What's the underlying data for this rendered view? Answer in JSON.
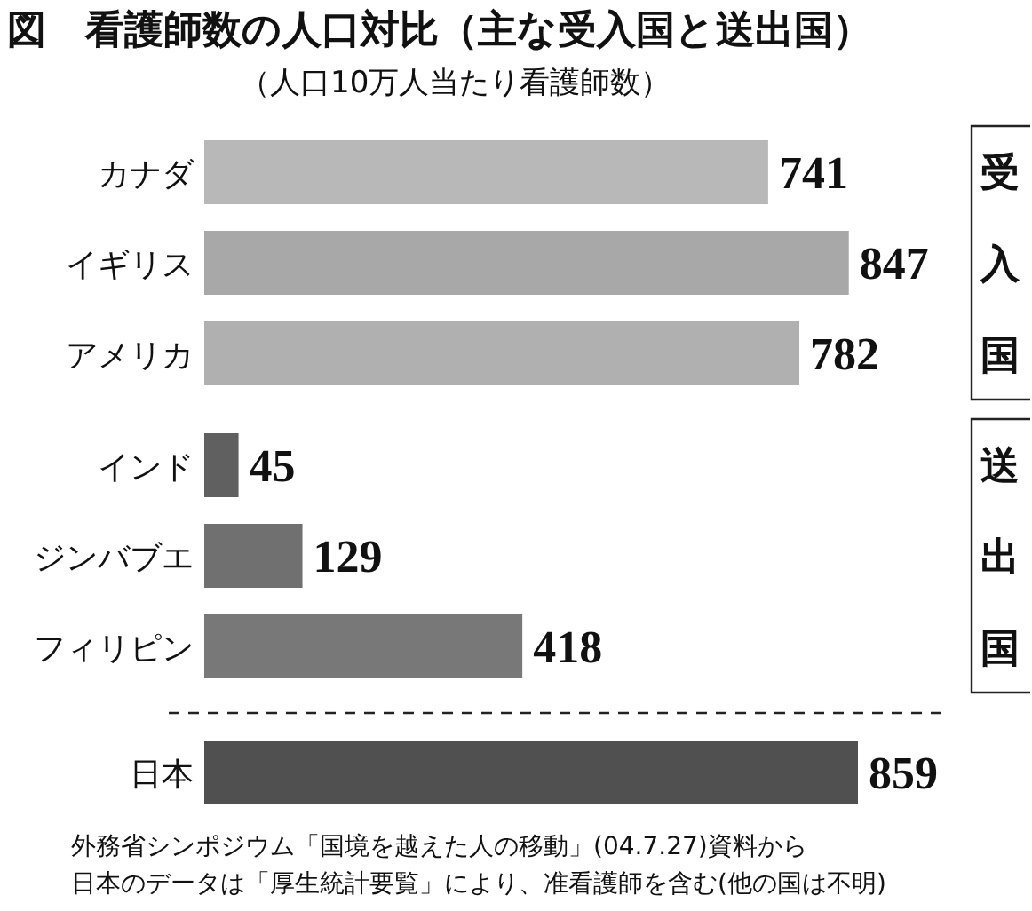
{
  "chart_data": {
    "type": "bar",
    "orientation": "horizontal",
    "title": "図　看護師数の人口対比（主な受入国と送出国）",
    "subtitle": "（人口10万人当たり看護師数）",
    "categories": [
      "カナダ",
      "イギリス",
      "アメリカ",
      "インド",
      "ジンバブエ",
      "フィリピン",
      "日本"
    ],
    "values": [
      741,
      847,
      782,
      45,
      129,
      418,
      859
    ],
    "colors": [
      "#b8b8b8",
      "#a8a8a8",
      "#b0b0b0",
      "#606060",
      "#707070",
      "#787878",
      "#505050"
    ],
    "data_labels": true,
    "annotations": [
      "受入国",
      "送出国",
      "外務省シンポジウム「国境を越えた人の移動」(04.7.27)資料から",
      "日本のデータは「厚生統計要覧」により、准看護師を含む(他の国は不明)"
    ]
  }
}
